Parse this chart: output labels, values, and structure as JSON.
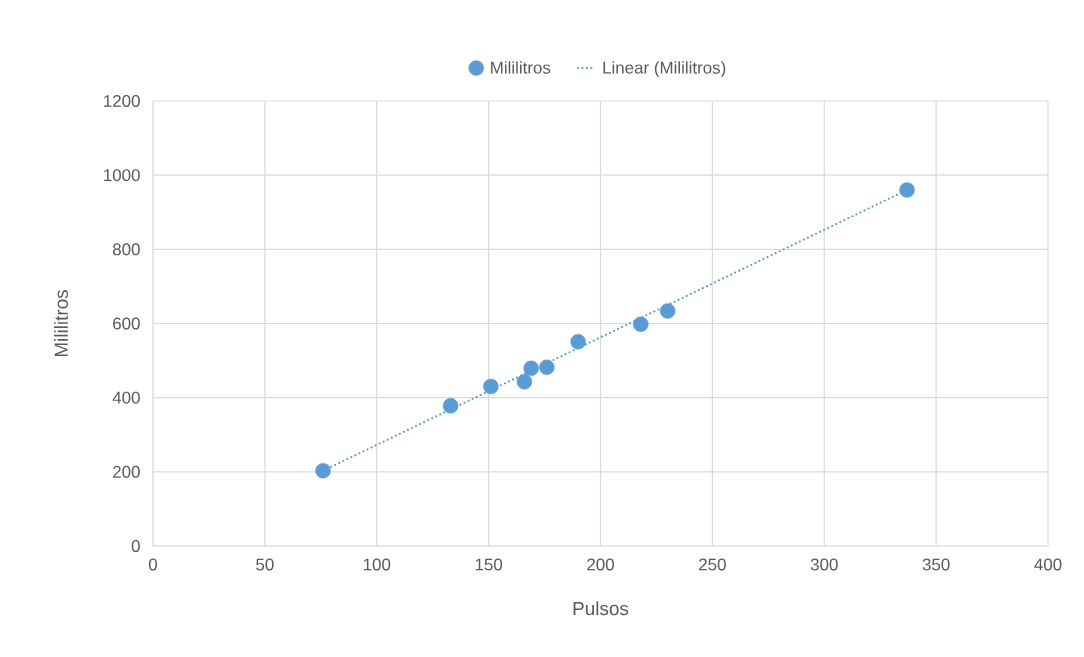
{
  "chart_data": {
    "type": "scatter",
    "xlabel": "Pulsos",
    "ylabel": "Mililitros",
    "xlim": [
      0,
      400
    ],
    "ylim": [
      0,
      1200
    ],
    "xticks": [
      0,
      50,
      100,
      150,
      200,
      250,
      300,
      350,
      400
    ],
    "yticks": [
      0,
      200,
      400,
      600,
      800,
      1000,
      1200
    ],
    "grid": true,
    "legend": "top",
    "marker": "circle",
    "series": [
      {
        "name": "Mililitros",
        "color": "#5b9bd5",
        "x": [
          76,
          133,
          151,
          166,
          169,
          176,
          190,
          218,
          230,
          337
        ],
        "values": [
          203,
          378,
          430,
          443,
          479,
          482,
          551,
          598,
          634,
          960
        ]
      },
      {
        "name": "Linear (Mililitros)",
        "type": "line",
        "color": "#5b9bd5",
        "line_style": "dotted",
        "marker": "none",
        "x": [
          76,
          337
        ],
        "values": [
          203,
          960
        ]
      }
    ]
  }
}
